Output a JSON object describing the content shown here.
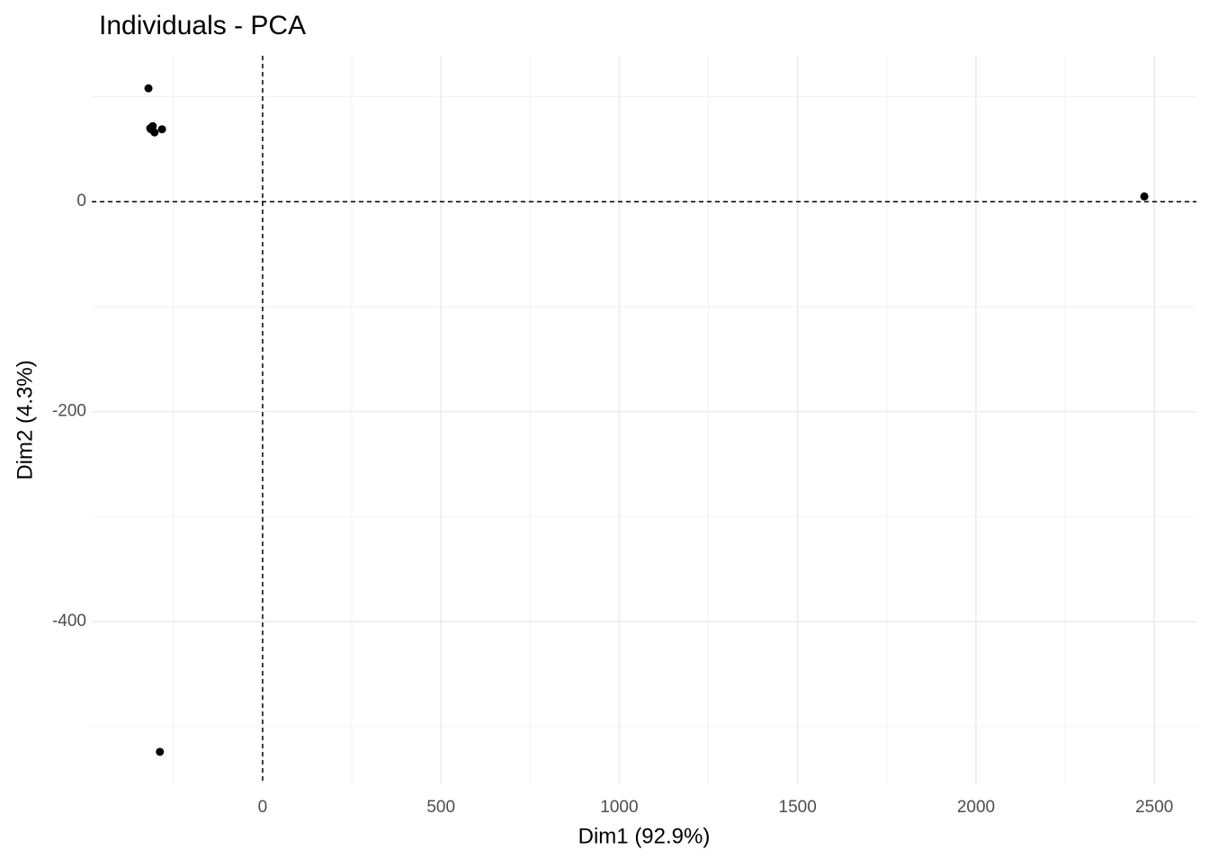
{
  "chart_data": {
    "type": "scatter",
    "title": "Individuals - PCA",
    "x_label": "Dim1 (92.9%)",
    "y_label": "Dim2 (4.3%)",
    "color": "#000000",
    "x": [
      -320,
      -315,
      -308,
      -303,
      -313,
      -282,
      2472,
      -288
    ],
    "y": [
      108,
      70,
      72,
      66,
      69,
      69,
      5,
      -524
    ],
    "xlim": [
      -479,
      2618
    ],
    "ylim": [
      -555,
      139
    ],
    "xticks": [
      0,
      500,
      1000,
      1500,
      2000,
      2500
    ],
    "yticks": [
      0,
      -200,
      -400
    ],
    "xminor": [
      -250,
      250,
      750,
      1250,
      1750,
      2250
    ],
    "yminor": [
      100,
      -100,
      -300,
      -500
    ],
    "grid": true,
    "reference_lines": {
      "x": 0,
      "y": 0
    }
  }
}
